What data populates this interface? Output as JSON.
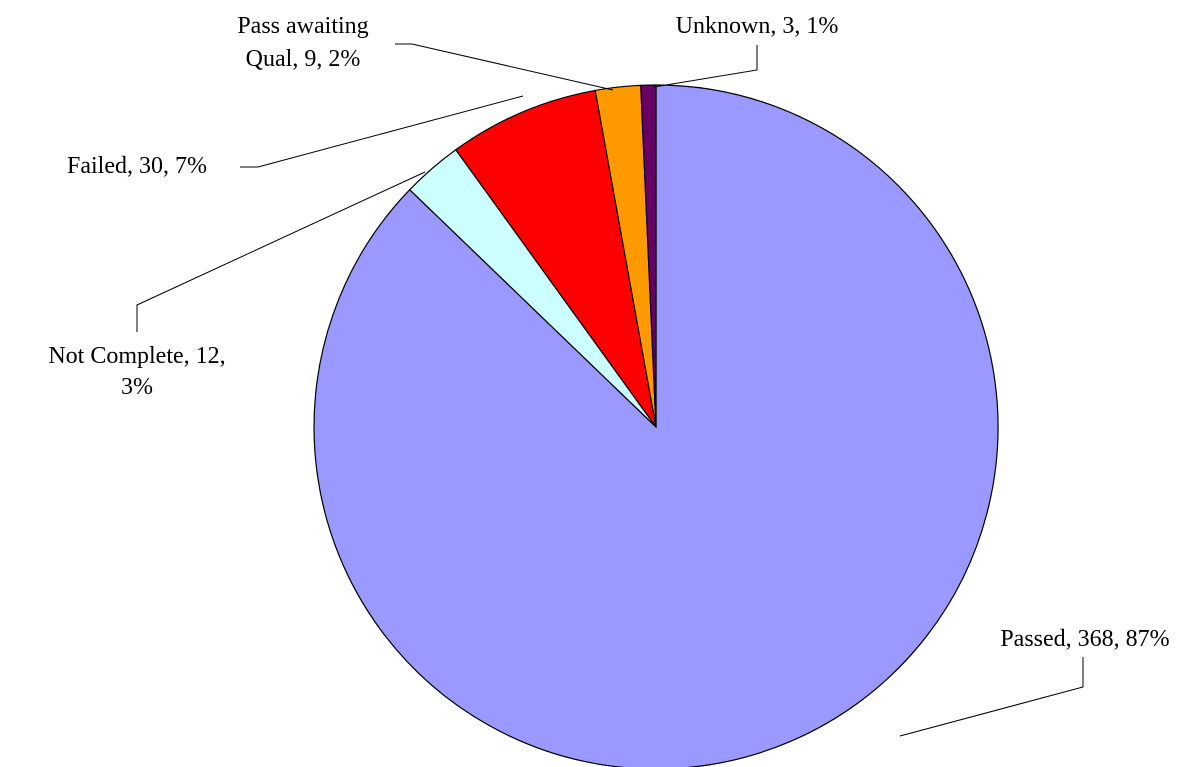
{
  "chart_data": {
    "type": "pie",
    "values": [
      368,
      12,
      30,
      9,
      3
    ],
    "colors": [
      "#9999ff",
      "#ccffff",
      "#ff0000",
      "#ff9900",
      "#660066"
    ],
    "value_labels": [
      [
        "Passed, 368, 87%"
      ],
      [
        "Not Complete, 12,",
        "3%"
      ],
      [
        "Failed, 30, 7%"
      ],
      [
        "Pass awaiting",
        "Qual, 9, 2%"
      ],
      [
        "Unknown, 3, 1%"
      ]
    ]
  }
}
